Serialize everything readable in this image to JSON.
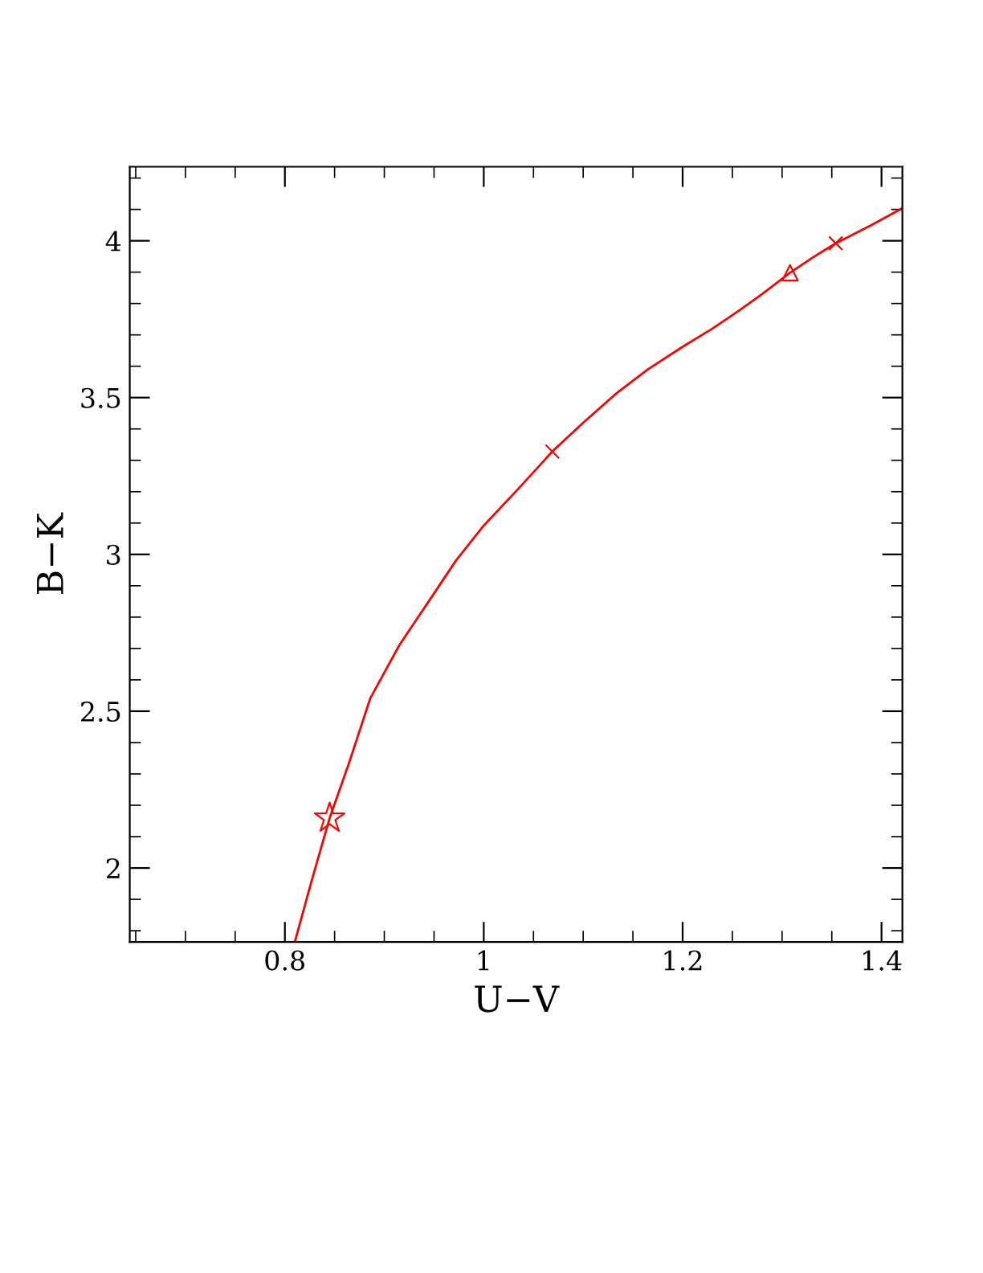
{
  "chart_data": {
    "type": "line",
    "xlabel": "U−V",
    "ylabel": "B−K",
    "xlim": [
      0.644,
      1.421
    ],
    "ylim": [
      1.764,
      4.236
    ],
    "xticks": [
      {
        "value": 0.65,
        "label": null
      },
      {
        "value": 0.7,
        "label": null
      },
      {
        "value": 0.75,
        "label": null
      },
      0.8,
      {
        "value": 0.85,
        "label": null
      },
      {
        "value": 0.9,
        "label": null
      },
      {
        "value": 0.95,
        "label": null
      },
      1,
      {
        "value": 1.05,
        "label": null
      },
      {
        "value": 1.1,
        "label": null
      },
      {
        "value": 1.15,
        "label": null
      },
      1.2,
      {
        "value": 1.25,
        "label": null
      },
      {
        "value": 1.3,
        "label": null
      },
      {
        "value": 1.35,
        "label": null
      },
      1.4
    ],
    "yticks": [
      {
        "value": 1.8,
        "label": null
      },
      {
        "value": 1.9,
        "label": null
      },
      2,
      {
        "value": 2.1,
        "label": null
      },
      {
        "value": 2.2,
        "label": null
      },
      {
        "value": 2.3,
        "label": null
      },
      {
        "value": 2.4,
        "label": null
      },
      2.5,
      {
        "value": 2.6,
        "label": null
      },
      {
        "value": 2.7,
        "label": null
      },
      {
        "value": 2.8,
        "label": null
      },
      {
        "value": 2.9,
        "label": null
      },
      3,
      {
        "value": 3.1,
        "label": null
      },
      {
        "value": 3.2,
        "label": null
      },
      {
        "value": 3.3,
        "label": null
      },
      {
        "value": 3.4,
        "label": null
      },
      3.5,
      {
        "value": 3.6,
        "label": null
      },
      {
        "value": 3.7,
        "label": null
      },
      {
        "value": 3.8,
        "label": null
      },
      {
        "value": 3.9,
        "label": null
      },
      4,
      {
        "value": 4.1,
        "label": null
      },
      {
        "value": 4.2,
        "label": null
      }
    ],
    "grid": false,
    "legend": false,
    "series": [
      {
        "color": "#ff0000",
        "marker": "none",
        "x": [
          0.81,
          0.827,
          0.845,
          0.864,
          0.886,
          0.915,
          0.948,
          0.972,
          1.0,
          1.035,
          1.069,
          1.1,
          1.134,
          1.165,
          1.2,
          1.23,
          1.258,
          1.28,
          1.308,
          1.33,
          1.354,
          1.39,
          1.421
        ],
        "values": [
          1.764,
          1.96,
          2.159,
          2.33,
          2.542,
          2.71,
          2.866,
          2.98,
          3.092,
          3.21,
          3.328,
          3.42,
          3.515,
          3.59,
          3.662,
          3.72,
          3.78,
          3.83,
          3.898,
          3.945,
          3.992,
          4.05,
          4.104
        ]
      },
      {
        "type": "scatter",
        "color": "#ff0000",
        "marker": "star",
        "x": [
          0.845
        ],
        "values": [
          2.159
        ]
      },
      {
        "type": "scatter",
        "color": "#ff0000",
        "marker": "cross",
        "x": [
          1.069,
          1.354
        ],
        "values": [
          3.328,
          3.992
        ]
      },
      {
        "type": "scatter",
        "color": "#ff0000",
        "marker": "triangle",
        "x": [
          1.308
        ],
        "values": [
          3.898
        ]
      }
    ]
  }
}
